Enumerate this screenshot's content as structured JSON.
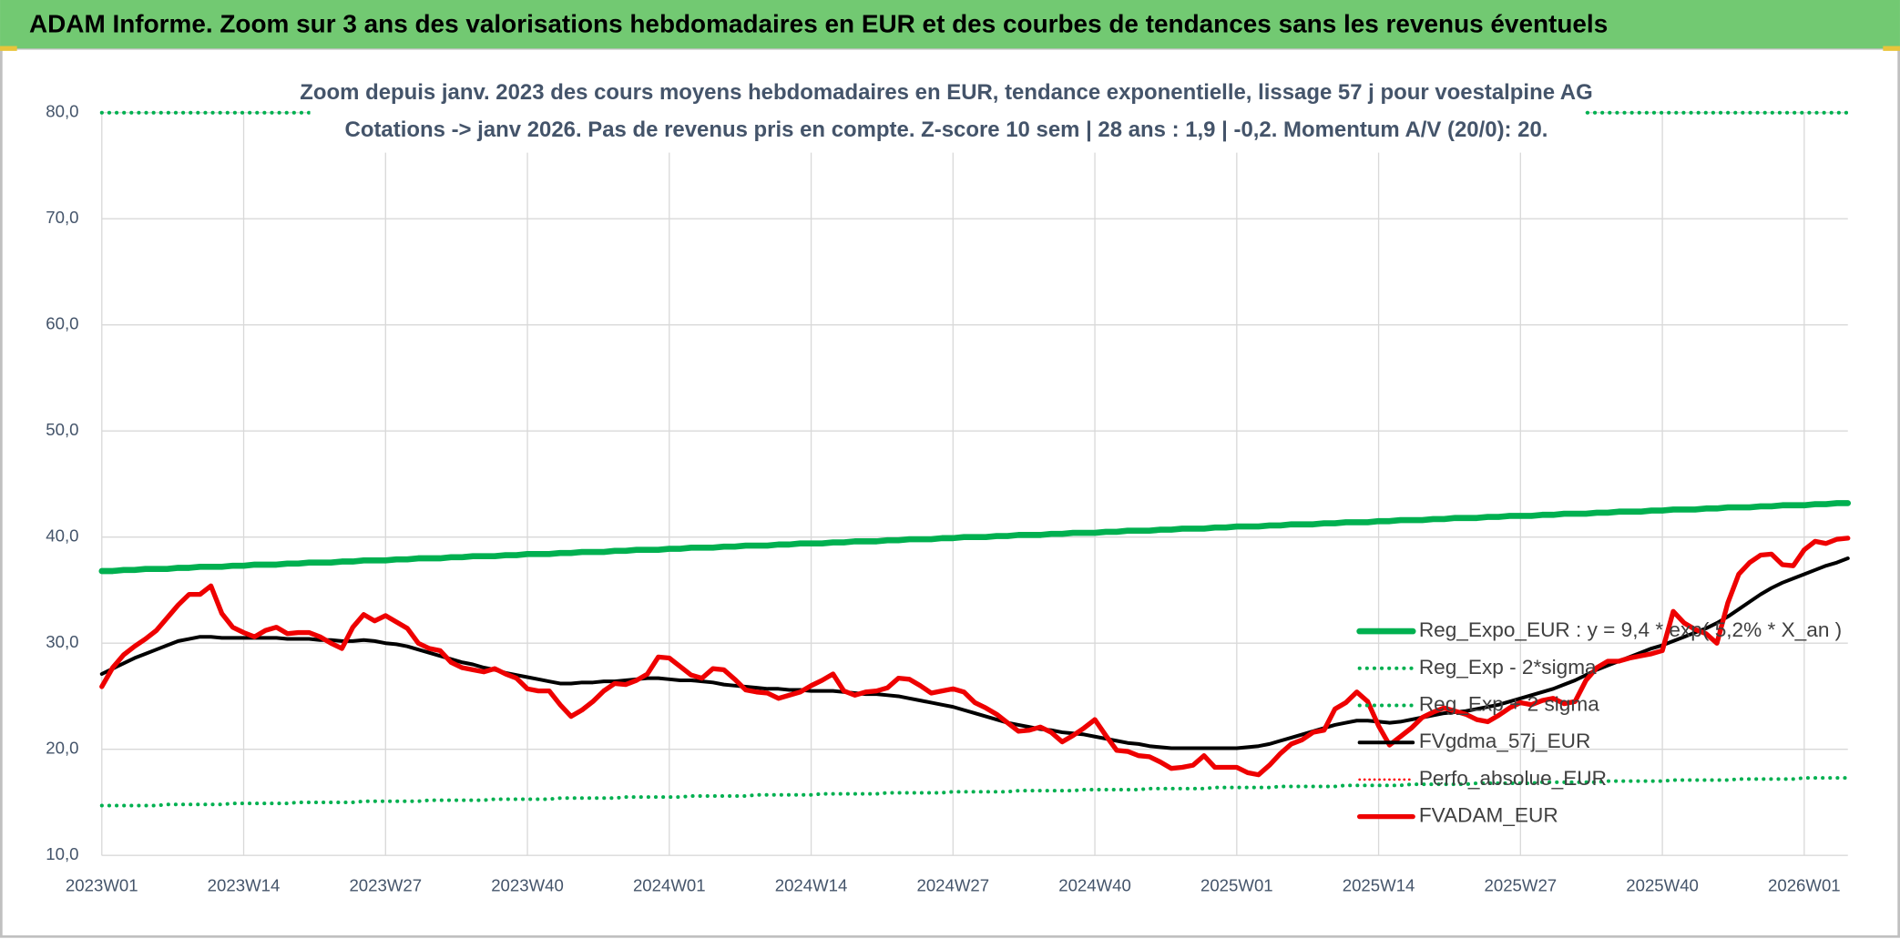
{
  "header": {
    "title": "ADAM Informe. Zoom sur 3 ans des valorisations hebdomadaires en EUR et des courbes de tendances sans les revenus éventuels"
  },
  "chart_data": {
    "type": "line",
    "title": "Zoom depuis janv. 2023 des cours moyens hebdomadaires en EUR, tendance exponentielle, lissage 57 j pour voestalpine AG",
    "subtitle": "Cotations -> janv 2026. Pas de revenus pris en compte. Z-score 10 sem | 28 ans : 1,9 | -0,2. Momentum A/V (20/0): 20.",
    "categories": [
      "2023W01",
      null,
      null,
      null,
      null,
      null,
      null,
      null,
      null,
      null,
      null,
      null,
      null,
      "2023W14",
      null,
      null,
      null,
      null,
      null,
      null,
      null,
      null,
      null,
      null,
      null,
      null,
      "2023W27",
      null,
      null,
      null,
      null,
      null,
      null,
      null,
      null,
      null,
      null,
      null,
      null,
      "2023W40",
      null,
      null,
      null,
      null,
      null,
      null,
      null,
      null,
      null,
      null,
      null,
      null,
      "2024W01",
      null,
      null,
      null,
      null,
      null,
      null,
      null,
      null,
      null,
      null,
      null,
      null,
      "2024W14",
      null,
      null,
      null,
      null,
      null,
      null,
      null,
      null,
      null,
      null,
      null,
      null,
      "2024W27",
      null,
      null,
      null,
      null,
      null,
      null,
      null,
      null,
      null,
      null,
      null,
      null,
      "2024W40",
      null,
      null,
      null,
      null,
      null,
      null,
      null,
      null,
      null,
      null,
      null,
      null,
      "2025W01",
      null,
      null,
      null,
      null,
      null,
      null,
      null,
      null,
      null,
      null,
      null,
      null,
      "2025W14",
      null,
      null,
      null,
      null,
      null,
      null,
      null,
      null,
      null,
      null,
      null,
      null,
      "2025W27",
      null,
      null,
      null,
      null,
      null,
      null,
      null,
      null,
      null,
      null,
      null,
      null,
      "2025W40",
      null,
      null,
      null,
      null,
      null,
      null,
      null,
      null,
      null,
      null,
      null,
      null,
      "2026W01",
      null,
      null,
      null,
      null
    ],
    "ylim": [
      10,
      80
    ],
    "yticks": [
      {
        "value": 10,
        "label": "10,0"
      },
      {
        "value": 20,
        "label": "20,0"
      },
      {
        "value": 30,
        "label": "30,0"
      },
      {
        "value": 40,
        "label": "40,0"
      },
      {
        "value": 50,
        "label": "50,0"
      },
      {
        "value": 60,
        "label": "60,0"
      },
      {
        "value": 70,
        "label": "70,0"
      },
      {
        "value": 80,
        "label": "80,0"
      }
    ],
    "grid": true,
    "legend": "lower right",
    "series": [
      {
        "name": "Reg_Expo_EUR : y = 9,4 * exp( 5,2% *  X_an )",
        "color": "#00b050",
        "style": "solid",
        "width": 5,
        "values": [
          36.8,
          36.8,
          36.9,
          36.9,
          37.0,
          37.0,
          37.0,
          37.1,
          37.1,
          37.2,
          37.2,
          37.2,
          37.3,
          37.3,
          37.4,
          37.4,
          37.4,
          37.5,
          37.5,
          37.6,
          37.6,
          37.6,
          37.7,
          37.7,
          37.8,
          37.8,
          37.8,
          37.9,
          37.9,
          38.0,
          38.0,
          38.0,
          38.1,
          38.1,
          38.2,
          38.2,
          38.2,
          38.3,
          38.3,
          38.4,
          38.4,
          38.4,
          38.5,
          38.5,
          38.6,
          38.6,
          38.6,
          38.7,
          38.7,
          38.8,
          38.8,
          38.8,
          38.9,
          38.9,
          39.0,
          39.0,
          39.0,
          39.1,
          39.1,
          39.2,
          39.2,
          39.2,
          39.3,
          39.3,
          39.4,
          39.4,
          39.4,
          39.5,
          39.5,
          39.6,
          39.6,
          39.6,
          39.7,
          39.7,
          39.8,
          39.8,
          39.8,
          39.9,
          39.9,
          40.0,
          40.0,
          40.0,
          40.1,
          40.1,
          40.2,
          40.2,
          40.2,
          40.3,
          40.3,
          40.4,
          40.4,
          40.4,
          40.5,
          40.5,
          40.6,
          40.6,
          40.6,
          40.7,
          40.7,
          40.8,
          40.8,
          40.8,
          40.9,
          40.9,
          41.0,
          41.0,
          41.0,
          41.1,
          41.1,
          41.2,
          41.2,
          41.2,
          41.3,
          41.3,
          41.4,
          41.4,
          41.4,
          41.5,
          41.5,
          41.6,
          41.6,
          41.6,
          41.7,
          41.7,
          41.8,
          41.8,
          41.8,
          41.9,
          41.9,
          42.0,
          42.0,
          42.0,
          42.1,
          42.1,
          42.2,
          42.2,
          42.2,
          42.3,
          42.3,
          42.4,
          42.4,
          42.4,
          42.5,
          42.5,
          42.6,
          42.6,
          42.6,
          42.7,
          42.7,
          42.8,
          42.8,
          42.8,
          42.9,
          42.9,
          43.0,
          43.0,
          43.0,
          43.1,
          43.1,
          43.2,
          43.2
        ]
      },
      {
        "name": "Reg_Exp - 2*sigma",
        "color": "#00b050",
        "style": "dotted",
        "width": 3,
        "values": [
          14.7,
          14.7,
          14.7,
          14.7,
          14.7,
          14.7,
          14.8,
          14.8,
          14.8,
          14.8,
          14.8,
          14.8,
          14.9,
          14.9,
          14.9,
          14.9,
          14.9,
          14.9,
          15.0,
          15.0,
          15.0,
          15.0,
          15.0,
          15.0,
          15.1,
          15.1,
          15.1,
          15.1,
          15.1,
          15.1,
          15.2,
          15.2,
          15.2,
          15.2,
          15.2,
          15.2,
          15.3,
          15.3,
          15.3,
          15.3,
          15.3,
          15.3,
          15.4,
          15.4,
          15.4,
          15.4,
          15.4,
          15.4,
          15.5,
          15.5,
          15.5,
          15.5,
          15.5,
          15.5,
          15.6,
          15.6,
          15.6,
          15.6,
          15.6,
          15.6,
          15.7,
          15.7,
          15.7,
          15.7,
          15.7,
          15.7,
          15.8,
          15.8,
          15.8,
          15.8,
          15.8,
          15.8,
          15.9,
          15.9,
          15.9,
          15.9,
          15.9,
          15.9,
          16.0,
          16.0,
          16.0,
          16.0,
          16.0,
          16.0,
          16.1,
          16.1,
          16.1,
          16.1,
          16.1,
          16.1,
          16.2,
          16.2,
          16.2,
          16.2,
          16.2,
          16.2,
          16.3,
          16.3,
          16.3,
          16.3,
          16.3,
          16.3,
          16.4,
          16.4,
          16.4,
          16.4,
          16.4,
          16.4,
          16.5,
          16.5,
          16.5,
          16.5,
          16.5,
          16.5,
          16.6,
          16.6,
          16.6,
          16.6,
          16.6,
          16.6,
          16.7,
          16.7,
          16.7,
          16.7,
          16.7,
          16.7,
          16.8,
          16.8,
          16.8,
          16.8,
          16.8,
          16.8,
          16.9,
          16.9,
          16.9,
          16.9,
          16.9,
          16.9,
          17.0,
          17.0,
          17.0,
          17.0,
          17.0,
          17.0,
          17.1,
          17.1,
          17.1,
          17.1,
          17.1,
          17.1,
          17.2,
          17.2,
          17.2,
          17.2,
          17.2,
          17.2,
          17.3,
          17.3,
          17.3,
          17.3,
          17.3
        ]
      },
      {
        "name": "Reg_Exp + 2 sigma",
        "color": "#00b050",
        "style": "dotted",
        "width": 3,
        "values": [
          80,
          80,
          80,
          80,
          80,
          80,
          80,
          80,
          80,
          80,
          80,
          80,
          80,
          80,
          80,
          80,
          80,
          80,
          80,
          80,
          80,
          80,
          80,
          80,
          80,
          80,
          80,
          80,
          80,
          80,
          80,
          80,
          80,
          80,
          80,
          80,
          80,
          80,
          80,
          80,
          80,
          80,
          80,
          80,
          80,
          80,
          80,
          80,
          80,
          80,
          80,
          80,
          80,
          80,
          80,
          80,
          80,
          80,
          80,
          80,
          80,
          80,
          80,
          80,
          80,
          80,
          80,
          80,
          80,
          80,
          80,
          80,
          80,
          80,
          80,
          80,
          80,
          80,
          80,
          80,
          80,
          80,
          80,
          80,
          80,
          80,
          80,
          80,
          80,
          80,
          80,
          80,
          80,
          80,
          80,
          80,
          80,
          80,
          80,
          80,
          80,
          80,
          80,
          80,
          80,
          80,
          80,
          80,
          80,
          80,
          80,
          80,
          80,
          80,
          80,
          80,
          80,
          80,
          80,
          80,
          80,
          80,
          80,
          80,
          80,
          80,
          80,
          80,
          80,
          80,
          80,
          80,
          80,
          80,
          80,
          80,
          80,
          80,
          80,
          80,
          80,
          80,
          80,
          80,
          80,
          80,
          80,
          80,
          80,
          80,
          80,
          80,
          80,
          80,
          80,
          80,
          80,
          80,
          80,
          80,
          80
        ]
      },
      {
        "name": "FVgdma_57j_EUR",
        "color": "#000000",
        "style": "solid",
        "width": 3,
        "values": [
          27.1,
          27.6,
          28.1,
          28.6,
          29.0,
          29.4,
          29.8,
          30.2,
          30.4,
          30.6,
          30.6,
          30.5,
          30.5,
          30.5,
          30.5,
          30.5,
          30.5,
          30.4,
          30.4,
          30.4,
          30.3,
          30.3,
          30.2,
          30.2,
          30.3,
          30.2,
          30.0,
          29.9,
          29.7,
          29.4,
          29.1,
          28.8,
          28.5,
          28.2,
          28.0,
          27.7,
          27.5,
          27.2,
          27.0,
          26.8,
          26.6,
          26.4,
          26.2,
          26.2,
          26.3,
          26.3,
          26.4,
          26.4,
          26.5,
          26.6,
          26.7,
          26.7,
          26.6,
          26.5,
          26.5,
          26.4,
          26.3,
          26.1,
          26.0,
          25.9,
          25.8,
          25.7,
          25.7,
          25.6,
          25.6,
          25.5,
          25.5,
          25.5,
          25.4,
          25.3,
          25.2,
          25.2,
          25.1,
          25.0,
          24.8,
          24.6,
          24.4,
          24.2,
          24.0,
          23.7,
          23.4,
          23.1,
          22.8,
          22.5,
          22.3,
          22.1,
          21.9,
          21.8,
          21.6,
          21.5,
          21.4,
          21.2,
          21.0,
          20.8,
          20.6,
          20.5,
          20.3,
          20.2,
          20.1,
          20.1,
          20.1,
          20.1,
          20.1,
          20.1,
          20.1,
          20.2,
          20.3,
          20.5,
          20.8,
          21.1,
          21.4,
          21.7,
          22.0,
          22.3,
          22.5,
          22.7,
          22.7,
          22.6,
          22.5,
          22.6,
          22.8,
          23.0,
          23.2,
          23.4,
          23.5,
          23.6,
          23.8,
          24.0,
          24.2,
          24.5,
          24.8,
          25.1,
          25.4,
          25.7,
          26.1,
          26.5,
          27.0,
          27.5,
          27.9,
          28.3,
          28.7,
          29.1,
          29.5,
          29.8,
          30.2,
          30.6,
          31.0,
          31.4,
          31.9,
          32.5,
          33.2,
          33.9,
          34.6,
          35.2,
          35.7,
          36.1,
          36.5,
          36.9,
          37.3,
          37.6,
          38.0
        ]
      },
      {
        "name": "Perfo_absolue_EUR",
        "color": "#ff0000",
        "style": "dotted",
        "width": 2
      },
      {
        "name": "FVADAM_EUR",
        "color": "#ee0000",
        "style": "solid",
        "width": 4,
        "values": [
          25.9,
          27.7,
          28.9,
          29.7,
          30.4,
          31.2,
          32.4,
          33.6,
          34.6,
          34.6,
          35.4,
          32.8,
          31.5,
          31.0,
          30.6,
          31.2,
          31.5,
          30.9,
          31.0,
          31.0,
          30.6,
          30.0,
          29.5,
          31.5,
          32.7,
          32.1,
          32.6,
          32.0,
          31.4,
          30.0,
          29.5,
          29.3,
          28.2,
          27.7,
          27.5,
          27.3,
          27.6,
          27.1,
          26.7,
          25.7,
          25.5,
          25.5,
          24.2,
          23.1,
          23.7,
          24.5,
          25.5,
          26.2,
          26.1,
          26.5,
          27.1,
          28.7,
          28.6,
          27.8,
          27.0,
          26.7,
          27.6,
          27.5,
          26.6,
          25.6,
          25.4,
          25.3,
          24.8,
          25.1,
          25.4,
          26.0,
          26.5,
          27.1,
          25.5,
          25.1,
          25.4,
          25.5,
          25.8,
          26.7,
          26.6,
          26.0,
          25.3,
          25.5,
          25.7,
          25.4,
          24.4,
          23.9,
          23.3,
          22.5,
          21.7,
          21.8,
          22.1,
          21.6,
          20.7,
          21.3,
          22.0,
          22.8,
          21.3,
          19.9,
          19.8,
          19.4,
          19.3,
          18.8,
          18.2,
          18.3,
          18.5,
          19.4,
          18.3,
          18.3,
          18.3,
          17.8,
          17.6,
          18.5,
          19.6,
          20.5,
          20.9,
          21.6,
          21.8,
          23.8,
          24.4,
          25.4,
          24.5,
          22.2,
          20.4,
          21.2,
          22.0,
          23.0,
          23.5,
          23.9,
          23.6,
          23.3,
          22.8,
          22.6,
          23.2,
          23.9,
          24.4,
          24.2,
          24.6,
          24.8,
          24.3,
          24.5,
          26.5,
          27.7,
          28.3,
          28.3,
          28.6,
          28.8,
          29.0,
          29.3,
          33.0,
          31.9,
          31.3,
          30.9,
          30.0,
          33.8,
          36.5,
          37.6,
          38.3,
          38.4,
          37.4,
          37.3,
          38.8,
          39.6,
          39.4,
          39.8,
          39.9
        ]
      }
    ]
  }
}
